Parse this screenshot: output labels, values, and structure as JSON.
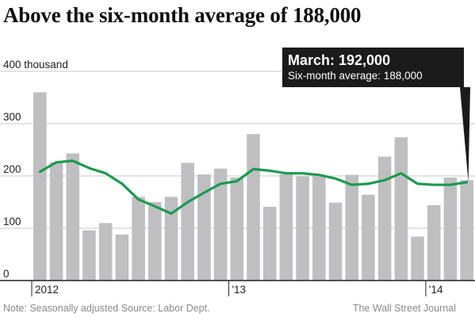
{
  "title": "Above the six-month average of 188,000",
  "callout": {
    "main": "March: 192,000",
    "sub": "Six-month average: 188,000"
  },
  "note": "Note: Seasonally adjusted  Source: Labor Dept.",
  "source": "The Wall Street Journal",
  "colors": {
    "bars": "#bfbfc1",
    "average_line": "#1a9a50",
    "grid": "#c9c9c9",
    "callout_bg": "#1b1b1b"
  },
  "chart_data": {
    "type": "bar",
    "y_unit_label": "400 thousand",
    "ylim": [
      0,
      400
    ],
    "yticks": [
      "0",
      "100",
      "200",
      "300"
    ],
    "grid": true,
    "xtick_labels": [
      "2012",
      "'13",
      "'14"
    ],
    "x_year_start_index": [
      0,
      12,
      24
    ],
    "categories": [
      "Jan 2012",
      "Feb 2012",
      "Mar 2012",
      "Apr 2012",
      "May 2012",
      "Jun 2012",
      "Jul 2012",
      "Aug 2012",
      "Sep 2012",
      "Oct 2012",
      "Nov 2012",
      "Dec 2012",
      "Jan 2013",
      "Feb 2013",
      "Mar 2013",
      "Apr 2013",
      "May 2013",
      "Jun 2013",
      "Jul 2013",
      "Aug 2013",
      "Sep 2013",
      "Oct 2013",
      "Nov 2013",
      "Dec 2013",
      "Jan 2014",
      "Feb 2014",
      "Mar 2014"
    ],
    "series": [
      {
        "type": "bar",
        "values": [
          360,
          226,
          243,
          96,
          110,
          88,
          160,
          150,
          160,
          225,
          203,
          214,
          197,
          280,
          141,
          203,
          199,
          201,
          149,
          202,
          164,
          237,
          274,
          84,
          144,
          197,
          192
        ]
      },
      {
        "type": "line",
        "values": [
          208,
          226,
          229,
          215,
          205,
          185,
          155,
          142,
          128,
          150,
          168,
          185,
          190,
          213,
          210,
          205,
          205,
          202,
          195,
          183,
          185,
          192,
          205,
          185,
          183,
          183,
          188
        ]
      }
    ]
  }
}
